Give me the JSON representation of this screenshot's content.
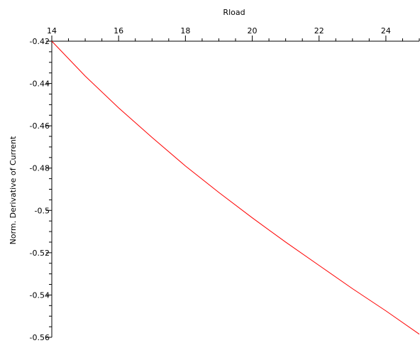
{
  "chart_data": {
    "type": "line",
    "xlabel": "Rload",
    "ylabel": "Norm. Derivative of Current",
    "xlim": [
      14,
      25
    ],
    "ylim": [
      -0.56,
      -0.42
    ],
    "x_axis_position": "top",
    "grid": false,
    "legend": "none",
    "x_ticks": [
      14,
      16,
      18,
      20,
      22,
      24
    ],
    "x_tick_labels": [
      "14",
      "16",
      "18",
      "20",
      "22",
      "24"
    ],
    "y_ticks": [
      -0.42,
      -0.44,
      -0.46,
      -0.48,
      -0.5,
      -0.52,
      -0.54,
      -0.56
    ],
    "y_tick_labels": [
      "-0.42",
      "-0.44",
      "-0.46",
      "-0.48",
      "-0.5",
      "-0.52",
      "-0.54",
      "-0.56"
    ],
    "series": [
      {
        "color": "#ff0000",
        "x": [
          14,
          15,
          16,
          17,
          18,
          19,
          20,
          21,
          22,
          23,
          24,
          25
        ],
        "y": [
          -0.42,
          -0.4365,
          -0.4515,
          -0.4655,
          -0.479,
          -0.4915,
          -0.5035,
          -0.515,
          -0.526,
          -0.537,
          -0.5475,
          -0.5585
        ]
      }
    ]
  }
}
